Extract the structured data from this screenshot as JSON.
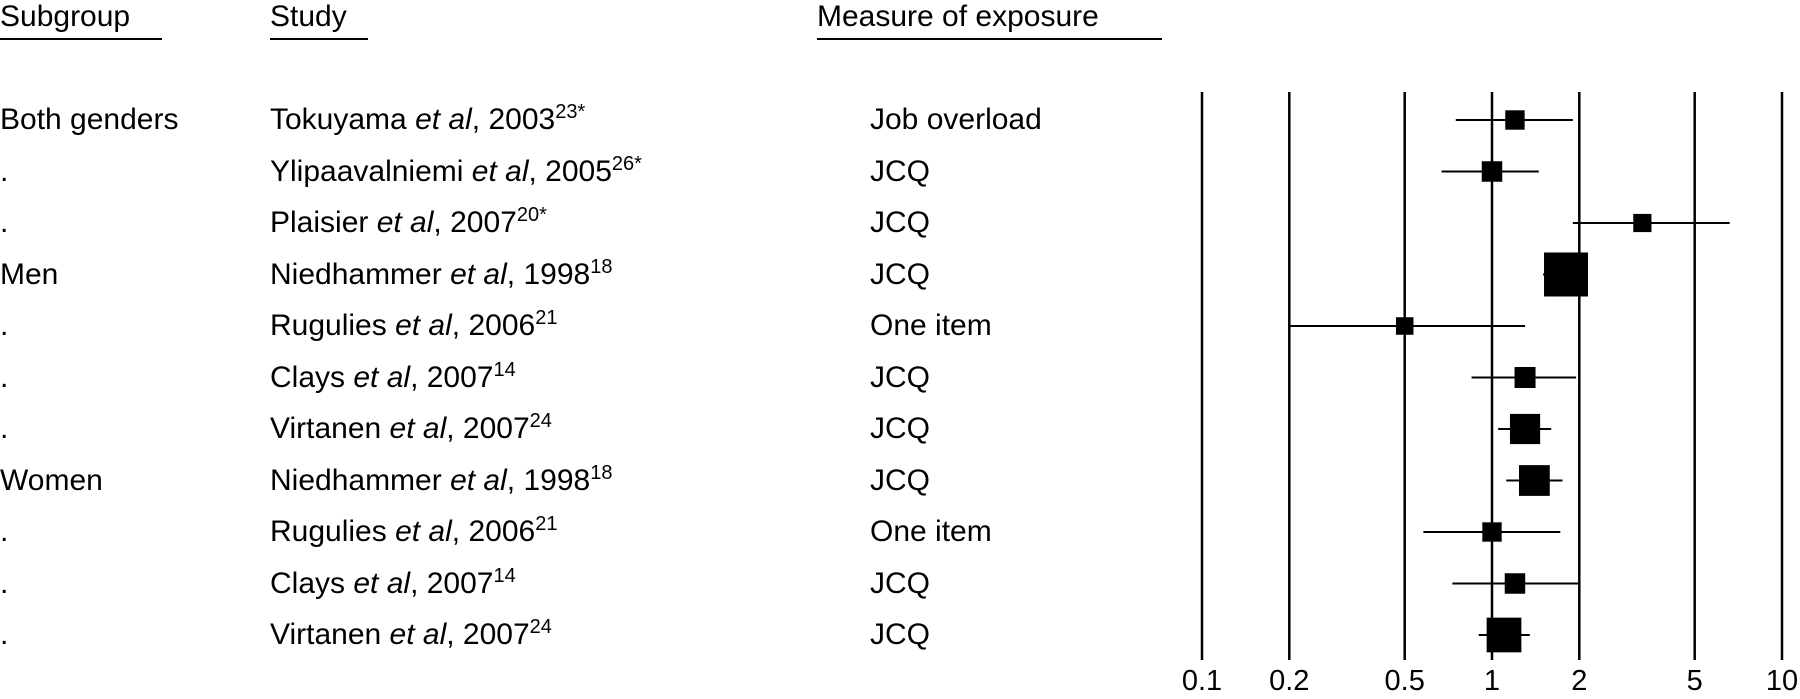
{
  "headers": {
    "subgroup": "Subgroup",
    "study": "Study",
    "measure": "Measure of exposure"
  },
  "rows": [
    {
      "subgroup": "Both genders",
      "author": "Tokuyama",
      "etal": "et al",
      "year": ", 2003",
      "ref": "23*",
      "measure": "Job overload"
    },
    {
      "subgroup": ".",
      "author": "Ylipaavalniemi",
      "etal": "et al",
      "year": ", 2005",
      "ref": "26*",
      "measure": "JCQ"
    },
    {
      "subgroup": ".",
      "author": "Plaisier",
      "etal": "et al",
      "year": ", 2007",
      "ref": "20*",
      "measure": "JCQ"
    },
    {
      "subgroup": "Men",
      "author": "Niedhammer",
      "etal": "et al",
      "year": ", 1998",
      "ref": "18",
      "measure": "JCQ"
    },
    {
      "subgroup": ".",
      "author": "Rugulies",
      "etal": "et al",
      "year": ", 2006",
      "ref": "21",
      "measure": "One item"
    },
    {
      "subgroup": ".",
      "author": "Clays",
      "etal": "et al",
      "year": ", 2007",
      "ref": "14",
      "measure": "JCQ"
    },
    {
      "subgroup": ".",
      "author": "Virtanen",
      "etal": "et al",
      "year": ", 2007",
      "ref": "24",
      "measure": "JCQ"
    },
    {
      "subgroup": "Women",
      "author": "Niedhammer",
      "etal": "et al",
      "year": ", 1998",
      "ref": "18",
      "measure": "JCQ"
    },
    {
      "subgroup": ".",
      "author": "Rugulies",
      "etal": "et al",
      "year": ", 2006",
      "ref": "21",
      "measure": "One item"
    },
    {
      "subgroup": ".",
      "author": "Clays",
      "etal": "et al",
      "year": ", 2007",
      "ref": "14",
      "measure": "JCQ"
    },
    {
      "subgroup": ".",
      "author": "Virtanen",
      "etal": "et al",
      "year": ", 2007",
      "ref": "24",
      "measure": "JCQ"
    }
  ],
  "chart_data": {
    "type": "forest",
    "x_scale": "log",
    "xlim": [
      0.1,
      10
    ],
    "ticks": [
      0.1,
      0.2,
      0.5,
      1,
      2,
      5,
      10
    ],
    "tick_labels": [
      "0.1",
      "0.2",
      "0.5",
      "1",
      "2",
      "5",
      "10"
    ],
    "gridlines": "vertical at ticks",
    "points": [
      {
        "estimate": 1.2,
        "lower": 0.75,
        "upper": 1.9,
        "weight": 0.1
      },
      {
        "estimate": 1.0,
        "lower": 0.67,
        "upper": 1.45,
        "weight": 0.12
      },
      {
        "estimate": 3.3,
        "lower": 1.9,
        "upper": 6.6,
        "weight": 0.08
      },
      {
        "estimate": 1.8,
        "lower": 1.5,
        "upper": 2.05,
        "weight": 1.0
      },
      {
        "estimate": 0.5,
        "lower": 0.2,
        "upper": 1.3,
        "weight": 0.07
      },
      {
        "estimate": 1.3,
        "lower": 0.85,
        "upper": 1.95,
        "weight": 0.13
      },
      {
        "estimate": 1.3,
        "lower": 1.05,
        "upper": 1.6,
        "weight": 0.38
      },
      {
        "estimate": 1.4,
        "lower": 1.12,
        "upper": 1.75,
        "weight": 0.4
      },
      {
        "estimate": 1.0,
        "lower": 0.58,
        "upper": 1.72,
        "weight": 0.1
      },
      {
        "estimate": 1.2,
        "lower": 0.73,
        "upper": 2.0,
        "weight": 0.12
      },
      {
        "estimate": 1.1,
        "lower": 0.9,
        "upper": 1.35,
        "weight": 0.55
      }
    ]
  }
}
